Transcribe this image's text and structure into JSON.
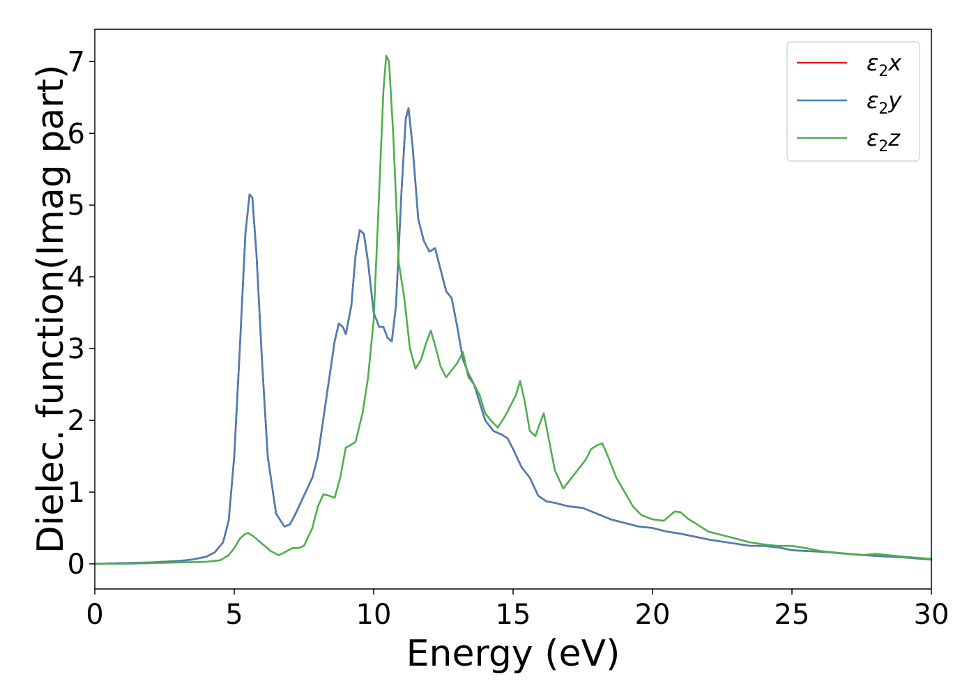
{
  "chart_data": {
    "type": "line",
    "title": "",
    "xlabel": "Energy (eV)",
    "ylabel": "Dielec. function(Imag part)",
    "xlim": [
      0,
      30
    ],
    "ylim": [
      -0.35,
      7.45
    ],
    "xticks": [
      0,
      5,
      10,
      15,
      20,
      25,
      30
    ],
    "yticks": [
      0,
      1,
      2,
      3,
      4,
      5,
      6,
      7
    ],
    "grid": false,
    "legend_position": "top-right",
    "series": [
      {
        "name": "ε₂x",
        "legend_base": "ε",
        "legend_sub": "2",
        "legend_suffix": "x",
        "color": "#e41a1c",
        "x": [
          0,
          1,
          2,
          3,
          3.5,
          4,
          4.3,
          4.6,
          4.8,
          5.0,
          5.2,
          5.4,
          5.55,
          5.65,
          5.8,
          6.0,
          6.2,
          6.5,
          6.8,
          7.0,
          7.2,
          7.5,
          7.8,
          8.0,
          8.3,
          8.6,
          8.75,
          8.9,
          9.0,
          9.2,
          9.35,
          9.5,
          9.65,
          9.8,
          10.0,
          10.2,
          10.35,
          10.5,
          10.65,
          10.8,
          11.0,
          11.15,
          11.25,
          11.4,
          11.6,
          11.8,
          12.0,
          12.2,
          12.4,
          12.6,
          12.8,
          13.0,
          13.2,
          13.4,
          13.6,
          13.8,
          14.0,
          14.3,
          14.6,
          14.8,
          15.0,
          15.3,
          15.6,
          15.9,
          16.2,
          16.5,
          17.0,
          17.5,
          18.0,
          18.5,
          19.0,
          19.5,
          20.0,
          20.5,
          21.0,
          21.5,
          22.0,
          22.5,
          23.0,
          23.5,
          24.0,
          24.5,
          25.0,
          26.0,
          27.0,
          28.0,
          29.0,
          30.0
        ],
        "y": [
          0.0,
          0.01,
          0.02,
          0.04,
          0.06,
          0.1,
          0.16,
          0.3,
          0.6,
          1.5,
          3.0,
          4.6,
          5.15,
          5.1,
          4.3,
          2.8,
          1.5,
          0.7,
          0.52,
          0.55,
          0.7,
          0.95,
          1.2,
          1.5,
          2.3,
          3.1,
          3.35,
          3.3,
          3.2,
          3.6,
          4.3,
          4.65,
          4.6,
          4.2,
          3.5,
          3.3,
          3.3,
          3.15,
          3.1,
          3.6,
          5.2,
          6.2,
          6.35,
          5.8,
          4.8,
          4.5,
          4.35,
          4.4,
          4.1,
          3.8,
          3.7,
          3.3,
          2.85,
          2.65,
          2.5,
          2.25,
          2.0,
          1.85,
          1.8,
          1.75,
          1.6,
          1.35,
          1.2,
          0.95,
          0.87,
          0.85,
          0.8,
          0.78,
          0.7,
          0.62,
          0.57,
          0.52,
          0.5,
          0.45,
          0.42,
          0.38,
          0.34,
          0.31,
          0.28,
          0.25,
          0.25,
          0.23,
          0.19,
          0.17,
          0.14,
          0.11,
          0.09,
          0.06
        ]
      },
      {
        "name": "ε₂y",
        "legend_base": "ε",
        "legend_sub": "2",
        "legend_suffix": "y",
        "color": "#4a7fb5",
        "x": [
          0,
          1,
          2,
          3,
          3.5,
          4,
          4.3,
          4.6,
          4.8,
          5.0,
          5.2,
          5.4,
          5.55,
          5.65,
          5.8,
          6.0,
          6.2,
          6.5,
          6.8,
          7.0,
          7.2,
          7.5,
          7.8,
          8.0,
          8.3,
          8.6,
          8.75,
          8.9,
          9.0,
          9.2,
          9.35,
          9.5,
          9.65,
          9.8,
          10.0,
          10.2,
          10.35,
          10.5,
          10.65,
          10.8,
          11.0,
          11.15,
          11.25,
          11.4,
          11.6,
          11.8,
          12.0,
          12.2,
          12.4,
          12.6,
          12.8,
          13.0,
          13.2,
          13.4,
          13.6,
          13.8,
          14.0,
          14.3,
          14.6,
          14.8,
          15.0,
          15.3,
          15.6,
          15.9,
          16.2,
          16.5,
          17.0,
          17.5,
          18.0,
          18.5,
          19.0,
          19.5,
          20.0,
          20.5,
          21.0,
          21.5,
          22.0,
          22.5,
          23.0,
          23.5,
          24.0,
          24.5,
          25.0,
          26.0,
          27.0,
          28.0,
          29.0,
          30.0
        ],
        "y": [
          0.0,
          0.01,
          0.02,
          0.04,
          0.06,
          0.1,
          0.16,
          0.3,
          0.6,
          1.5,
          3.0,
          4.6,
          5.15,
          5.1,
          4.3,
          2.8,
          1.5,
          0.7,
          0.52,
          0.55,
          0.7,
          0.95,
          1.2,
          1.5,
          2.3,
          3.1,
          3.35,
          3.3,
          3.2,
          3.6,
          4.3,
          4.65,
          4.6,
          4.2,
          3.5,
          3.3,
          3.3,
          3.15,
          3.1,
          3.6,
          5.2,
          6.2,
          6.35,
          5.8,
          4.8,
          4.5,
          4.35,
          4.4,
          4.1,
          3.8,
          3.7,
          3.3,
          2.85,
          2.65,
          2.5,
          2.25,
          2.0,
          1.85,
          1.8,
          1.75,
          1.6,
          1.35,
          1.2,
          0.95,
          0.87,
          0.85,
          0.8,
          0.78,
          0.7,
          0.62,
          0.57,
          0.52,
          0.5,
          0.45,
          0.42,
          0.38,
          0.34,
          0.31,
          0.28,
          0.25,
          0.25,
          0.23,
          0.19,
          0.17,
          0.14,
          0.11,
          0.09,
          0.06
        ]
      },
      {
        "name": "ε₂z",
        "legend_base": "ε",
        "legend_sub": "2",
        "legend_suffix": "z",
        "color": "#4daf4a",
        "x": [
          0,
          1,
          2,
          3,
          4,
          4.5,
          4.8,
          5.0,
          5.2,
          5.4,
          5.5,
          5.7,
          6.0,
          6.3,
          6.6,
          6.9,
          7.1,
          7.3,
          7.5,
          7.8,
          8.0,
          8.2,
          8.4,
          8.6,
          8.8,
          9.0,
          9.15,
          9.35,
          9.6,
          9.8,
          10.0,
          10.2,
          10.35,
          10.45,
          10.55,
          10.7,
          10.9,
          11.1,
          11.3,
          11.5,
          11.7,
          11.9,
          12.05,
          12.2,
          12.4,
          12.6,
          12.8,
          13.0,
          13.2,
          13.4,
          13.6,
          13.8,
          14.0,
          14.2,
          14.45,
          14.7,
          14.9,
          15.1,
          15.25,
          15.4,
          15.6,
          15.8,
          16.0,
          16.1,
          16.3,
          16.5,
          16.8,
          17.0,
          17.3,
          17.6,
          17.8,
          18.0,
          18.2,
          18.4,
          18.7,
          19.0,
          19.3,
          19.6,
          20.0,
          20.4,
          20.8,
          21.0,
          21.3,
          21.6,
          22.0,
          22.5,
          23.0,
          23.5,
          24.0,
          24.5,
          25.0,
          25.5,
          26.0,
          27.0,
          27.5,
          28.0,
          29.0,
          30.0
        ],
        "y": [
          0.0,
          0.0,
          0.01,
          0.02,
          0.03,
          0.05,
          0.12,
          0.22,
          0.35,
          0.42,
          0.43,
          0.38,
          0.28,
          0.18,
          0.12,
          0.18,
          0.22,
          0.22,
          0.25,
          0.5,
          0.8,
          0.97,
          0.95,
          0.92,
          1.2,
          1.62,
          1.65,
          1.7,
          2.1,
          2.6,
          3.4,
          5.2,
          6.6,
          7.08,
          7.0,
          6.0,
          4.2,
          3.7,
          3.0,
          2.72,
          2.85,
          3.1,
          3.25,
          3.05,
          2.75,
          2.6,
          2.7,
          2.8,
          2.95,
          2.6,
          2.5,
          2.35,
          2.1,
          2.0,
          1.9,
          2.05,
          2.2,
          2.35,
          2.55,
          2.3,
          1.85,
          1.78,
          2.0,
          2.1,
          1.7,
          1.3,
          1.05,
          1.15,
          1.3,
          1.45,
          1.6,
          1.65,
          1.68,
          1.5,
          1.2,
          1.0,
          0.8,
          0.68,
          0.62,
          0.6,
          0.73,
          0.72,
          0.62,
          0.55,
          0.45,
          0.4,
          0.35,
          0.3,
          0.27,
          0.25,
          0.25,
          0.22,
          0.18,
          0.14,
          0.12,
          0.14,
          0.1,
          0.07
        ]
      }
    ]
  }
}
